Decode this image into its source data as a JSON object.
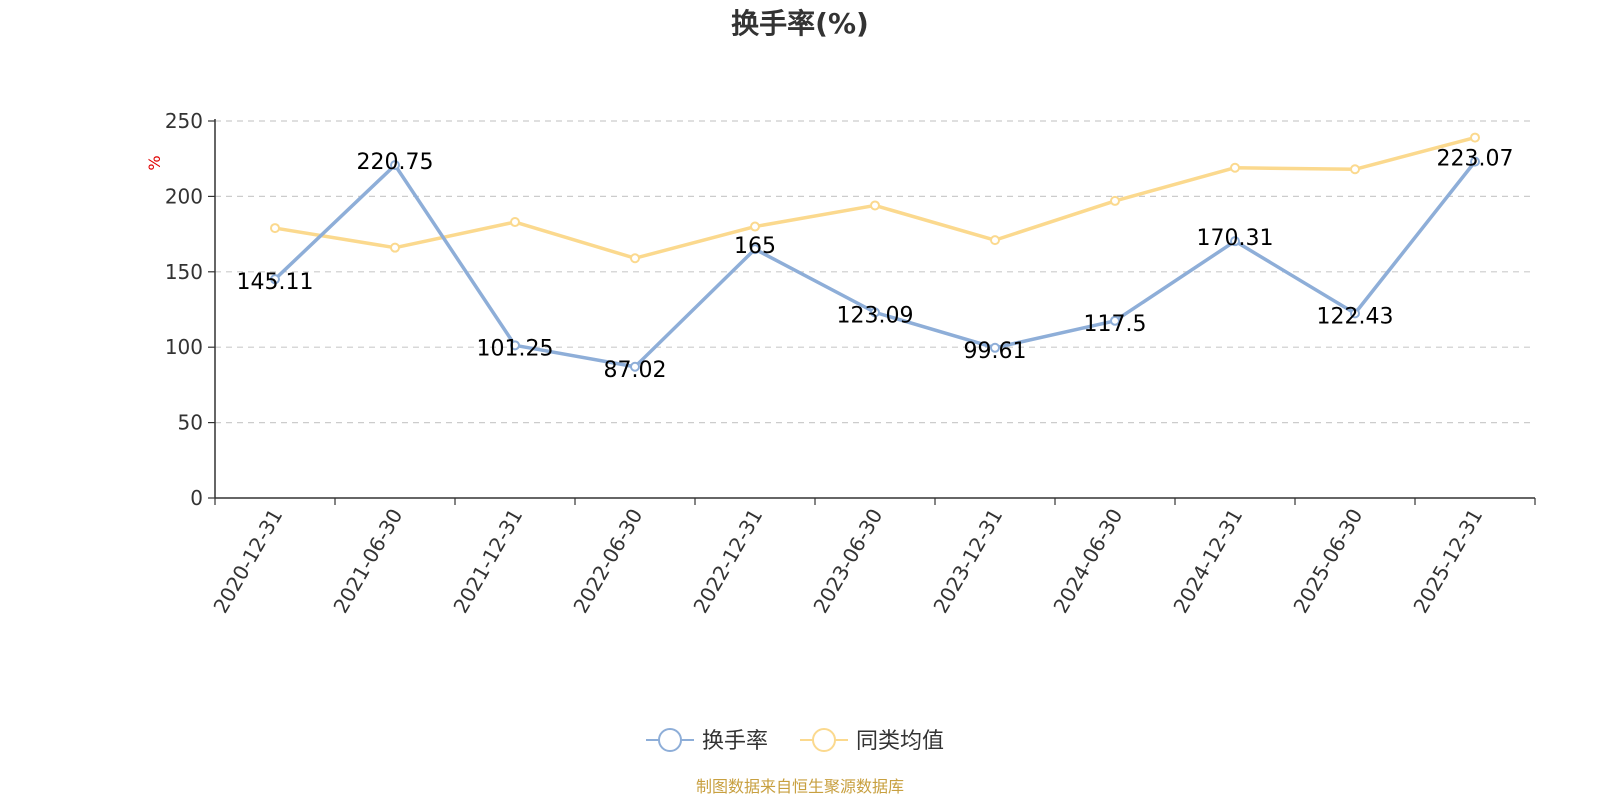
{
  "chart_data": {
    "type": "line",
    "title": "换手率(%)",
    "ylabel": "%",
    "xlabel": "",
    "ylim": [
      0,
      250
    ],
    "yticks": [
      0,
      50,
      100,
      150,
      200,
      250
    ],
    "grid": true,
    "legend_position": "bottom-center",
    "categories": [
      "2020-12-31",
      "2021-06-30",
      "2021-12-31",
      "2022-06-30",
      "2022-12-31",
      "2023-06-30",
      "2023-12-31",
      "2024-06-30",
      "2024-12-31",
      "2025-06-30",
      "2025-12-31"
    ],
    "series": [
      {
        "name": "换手率",
        "color": "#8eaed8",
        "show_labels": true,
        "values": [
          145.11,
          220.75,
          101.25,
          87.02,
          165,
          123.09,
          99.61,
          117.5,
          170.31,
          122.43,
          223.07
        ],
        "labels": [
          "145.11",
          "220.75",
          "101.25",
          "87.02",
          "165",
          "123.09",
          "99.61",
          "117.5",
          "170.31",
          "122.43",
          "223.07"
        ]
      },
      {
        "name": "同类均值",
        "color": "#fbd98e",
        "show_labels": false,
        "values": [
          179,
          166,
          183,
          159,
          180,
          194,
          171,
          197,
          219,
          218,
          239
        ]
      }
    ],
    "source_note": "制图数据来自恒生聚源数据库"
  }
}
